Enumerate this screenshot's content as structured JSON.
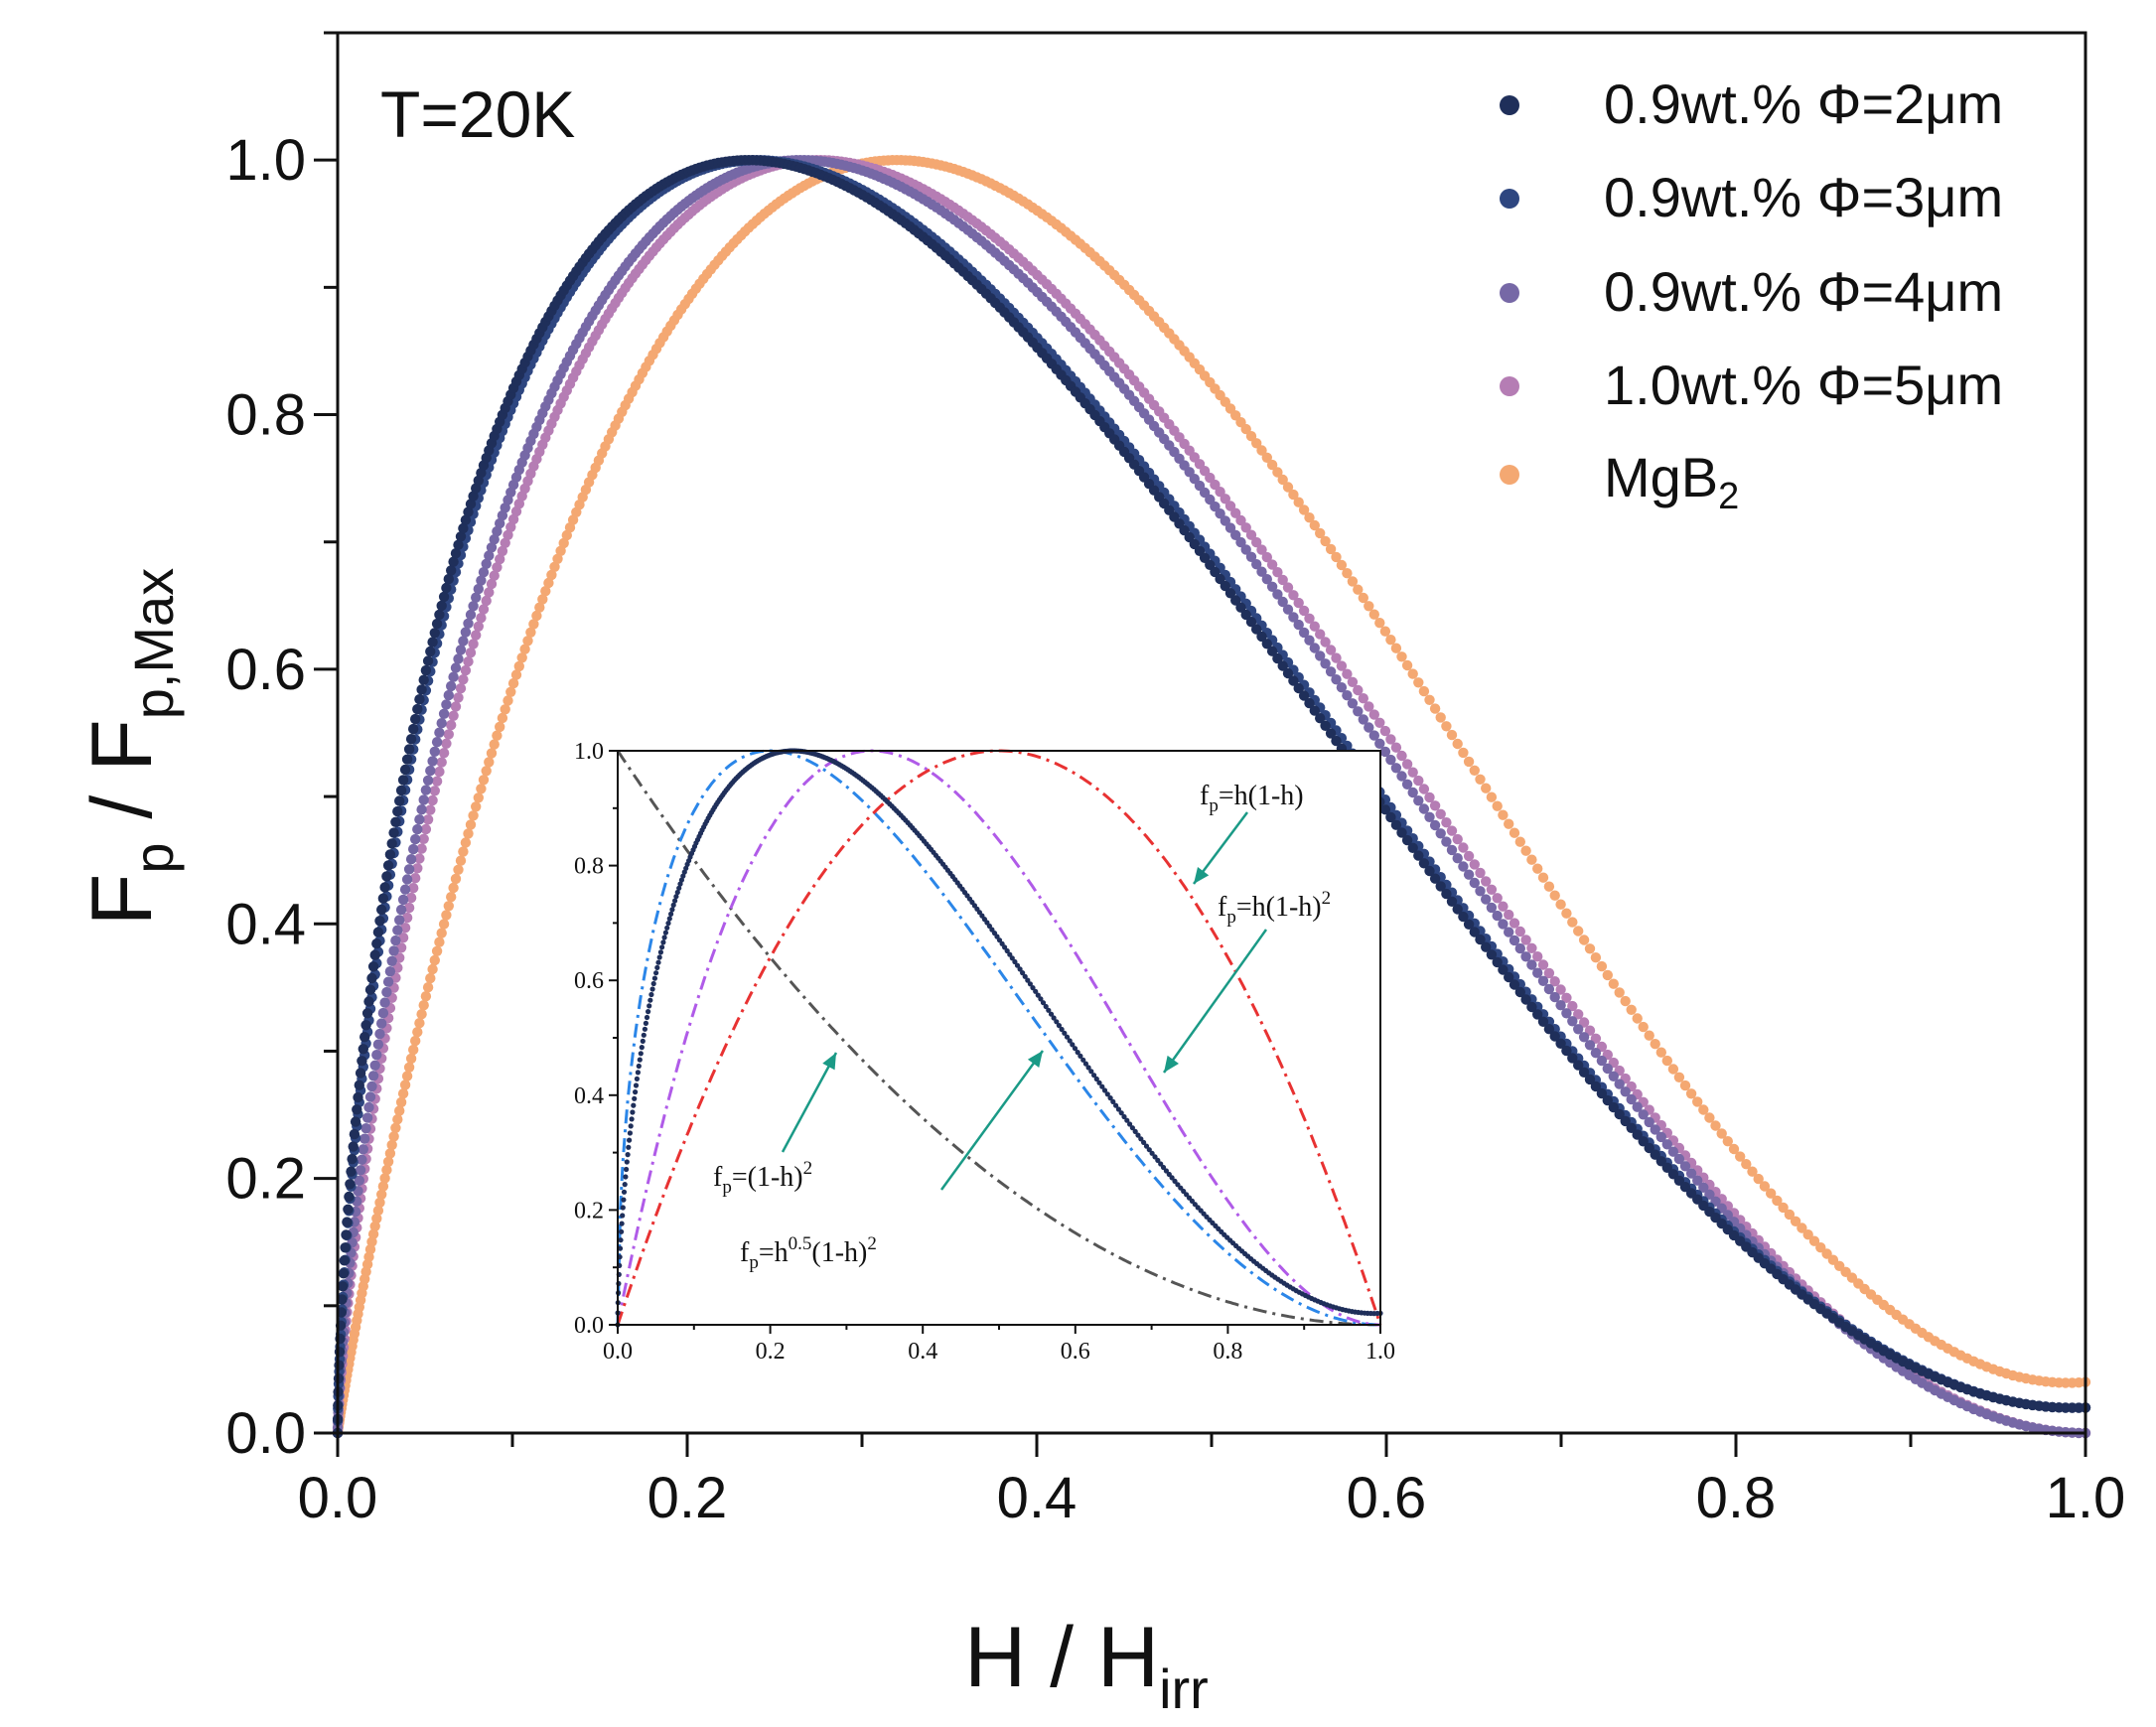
{
  "chart_data": [
    {
      "type": "scatter",
      "annotation": "T=20K",
      "xlabel": {
        "main": "H / H",
        "sub": "irr"
      },
      "ylabel": {
        "main": "F",
        "sub1": "p",
        "mid": " / F",
        "sub2": "p,Max"
      },
      "xlim": [
        0,
        1.0
      ],
      "ylim": [
        0,
        1.1
      ],
      "xticks": [
        "0.0",
        "0.2",
        "0.4",
        "0.6",
        "0.8",
        "1.0"
      ],
      "yticks": [
        "0.0",
        "0.2",
        "0.4",
        "0.6",
        "0.8",
        "1.0"
      ],
      "legend_position": "top-right",
      "series": [
        {
          "name": "0.9wt.% Φ=2μm",
          "color": "#1f2f5a",
          "peak": 0.235,
          "end_value": 0.02
        },
        {
          "name": "0.9wt.% Φ=3μm",
          "color": "#2e4680",
          "peak": 0.24,
          "end_value": 0.02
        },
        {
          "name": "0.9wt.% Φ=4μm",
          "color": "#7668a6",
          "peak": 0.265,
          "end_value": 0.0
        },
        {
          "name": "1.0wt.% Φ=5μm",
          "color": "#b57db4",
          "peak": 0.275,
          "end_value": 0.0
        },
        {
          "name_main": "MgB",
          "name_sub": "2",
          "color": "#f4a872",
          "peak": 0.32,
          "end_value": 0.04
        }
      ]
    },
    {
      "type": "line",
      "role": "inset",
      "xlim": [
        0,
        1.0
      ],
      "ylim": [
        0,
        1.0
      ],
      "xticks": [
        "0.0",
        "0.2",
        "0.4",
        "0.6",
        "0.8",
        "1.0"
      ],
      "yticks": [
        "0.0",
        "0.2",
        "0.4",
        "0.6",
        "0.8",
        "1.0"
      ],
      "curves": [
        {
          "model": "(1-h)^2",
          "color": "#555555",
          "style": "dash-dot"
        },
        {
          "model": "h^0.5(1-h)^2",
          "color": "#2b86e8",
          "style": "dash-dot"
        },
        {
          "model": "h(1-h)^2",
          "color": "#b05be8",
          "style": "dash-dot"
        },
        {
          "model": "h(1-h)",
          "color": "#e83232",
          "style": "dash-dot"
        },
        {
          "model": "data",
          "color": "#1f2f5a",
          "style": "dots",
          "peak": 0.23,
          "end_value": 0.02
        }
      ],
      "labels": {
        "hh": {
          "prefix": "f",
          "sub": "p",
          "body": "=h(1-h)"
        },
        "hh2": {
          "prefix": "f",
          "sub": "p",
          "body": "=h(1-h)",
          "sup": "2"
        },
        "h1": {
          "prefix": "f",
          "sub": "p",
          "body": "=(1-h)",
          "sup": "2"
        },
        "hsq": {
          "prefix": "f",
          "sub": "p",
          "body1": "=h",
          "sup1": "0.5",
          "body2": "(1-h)",
          "sup2": "2"
        }
      },
      "arrow_color": "#1a9a86"
    }
  ]
}
